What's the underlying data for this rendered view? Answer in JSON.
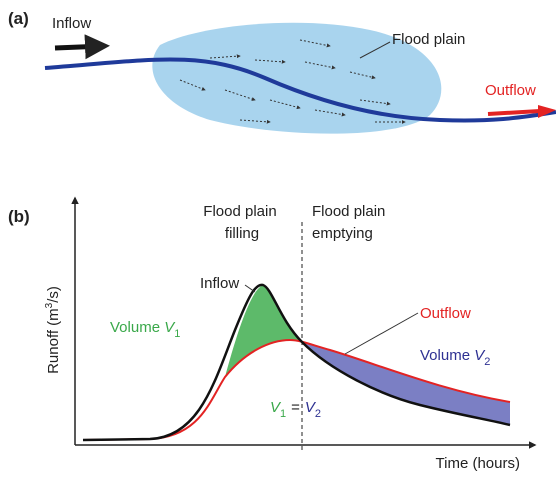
{
  "panel_a": {
    "label": "(a)",
    "inflow": "Inflow",
    "flood_plain": "Flood plain",
    "outflow": "Outflow"
  },
  "panel_b": {
    "label": "(b)",
    "filling": [
      "Flood plain",
      "filling"
    ],
    "emptying": [
      "Flood plain",
      "emptying"
    ],
    "inflow": "Inflow",
    "outflow": "Outflow",
    "volume1": {
      "prefix": "Volume",
      "symbol": "V",
      "sub": "1"
    },
    "volume2": {
      "prefix": "Volume",
      "symbol": "V",
      "sub": "2"
    },
    "equality": {
      "left": {
        "symbol": "V",
        "sub": "1"
      },
      "op": "=",
      "right": {
        "symbol": "V",
        "sub": "2"
      }
    },
    "y_axis": {
      "text": "Runoff (m",
      "sup": "3",
      "suffix": "/s)"
    },
    "x_axis": "Time (hours)"
  }
}
